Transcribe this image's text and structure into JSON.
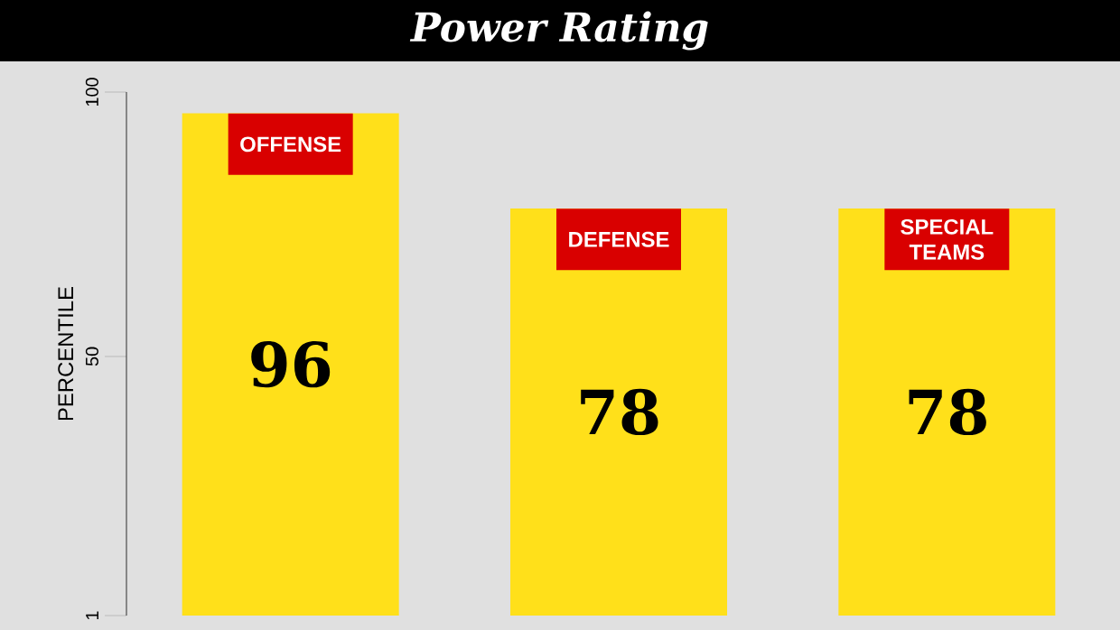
{
  "chart_data": {
    "type": "bar",
    "title": "Power Rating",
    "ylabel": "PERCENTILE",
    "categories": [
      "OFFENSE",
      "DEFENSE",
      "SPECIAL TEAMS"
    ],
    "values": [
      96,
      78,
      78
    ],
    "color": "#ffe01a",
    "data_labels": true,
    "ylim": [
      1,
      100
    ],
    "yticks": [
      1,
      50,
      100
    ]
  }
}
